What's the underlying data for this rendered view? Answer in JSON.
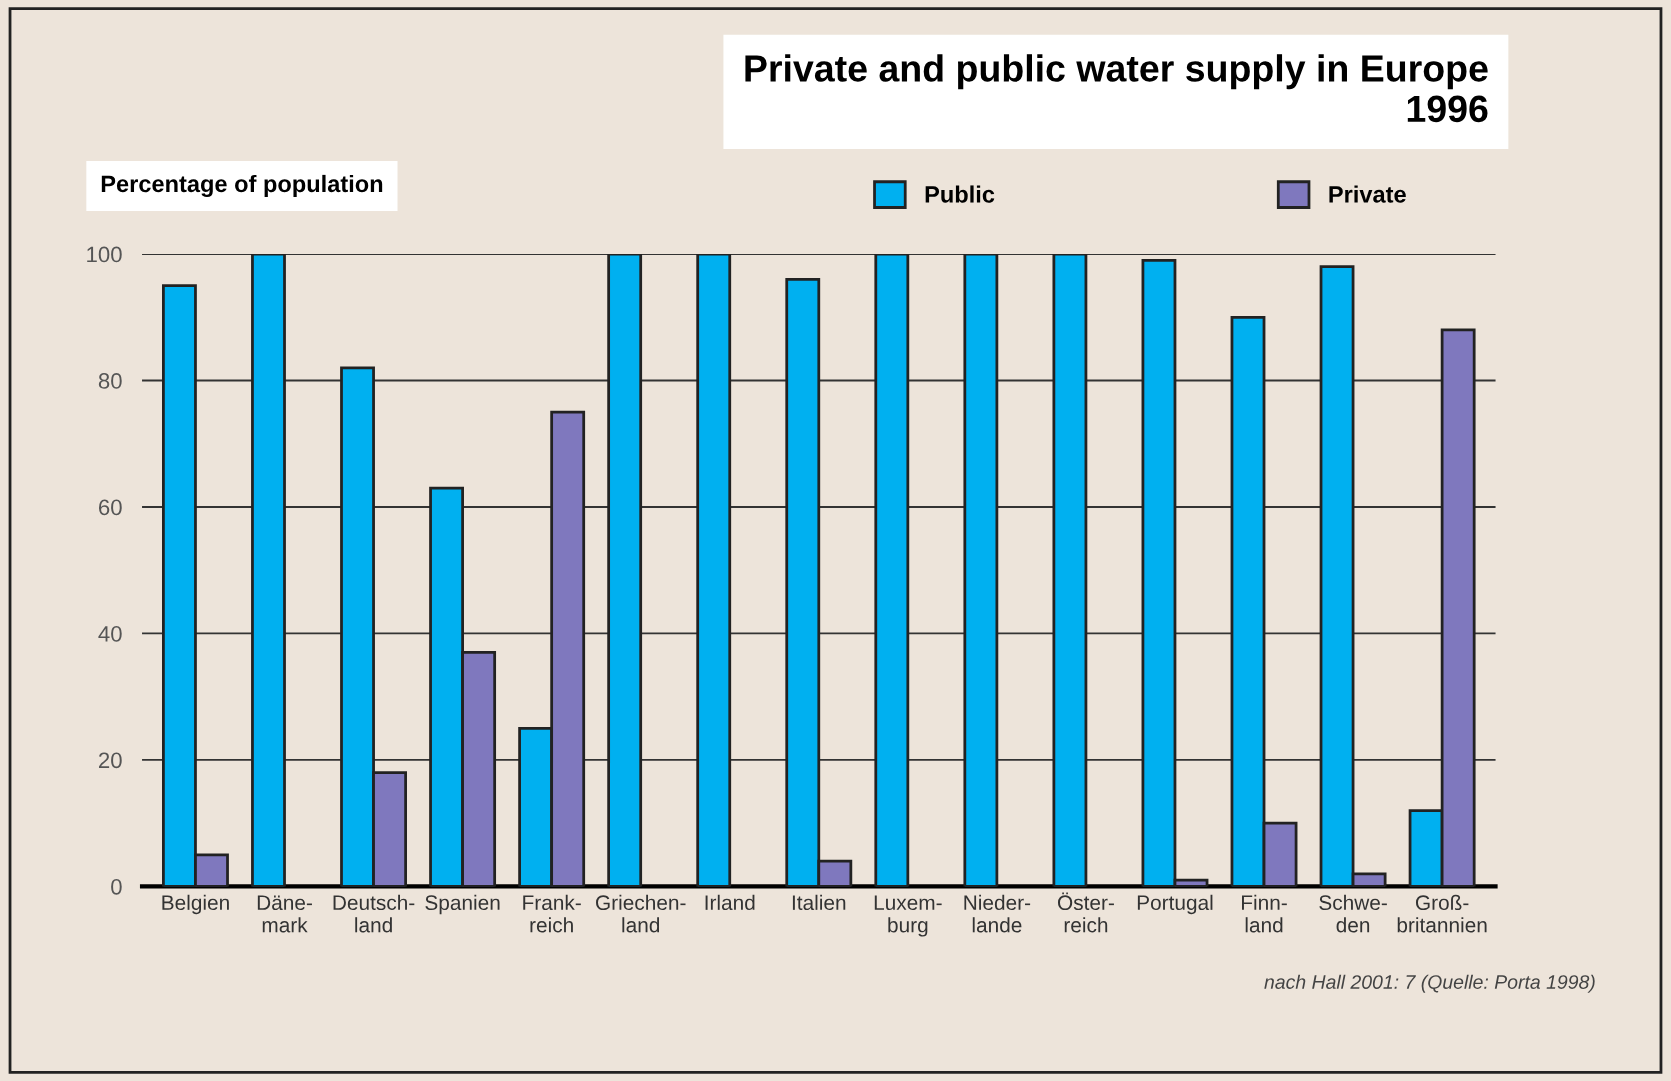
{
  "chart_data": {
    "type": "bar",
    "title": "Private and public water supply in Europe\n1996",
    "ylabel": "Percentage of population",
    "categories": [
      "Belgien",
      "Däne-\nmark",
      "Deutsch-\nland",
      "Spanien",
      "Frank-\nreich",
      "Griechen-\nland",
      "Irland",
      "Italien",
      "Luxem-\nburg",
      "Nieder-\nlande",
      "Öster-\nreich",
      "Portugal",
      "Finn-\nland",
      "Schwe-\nden",
      "Groß-\nbritannien"
    ],
    "series": [
      {
        "name": "Public",
        "color": "#00b0f0",
        "values": [
          95,
          100,
          82,
          63,
          25,
          100,
          100,
          96,
          100,
          100,
          100,
          99,
          90,
          98,
          12
        ]
      },
      {
        "name": "Private",
        "color": "#7f78be",
        "values": [
          5,
          null,
          18,
          37,
          75,
          null,
          null,
          4,
          null,
          null,
          null,
          1,
          10,
          2,
          88
        ]
      }
    ],
    "ylim": [
      0,
      100
    ],
    "yticks": [
      0,
      20,
      40,
      60,
      80,
      100
    ],
    "grid": "y",
    "legend": "top right",
    "annotations": [
      "nach Hall 2001: 7 (Quelle: Porta 1998)"
    ]
  }
}
